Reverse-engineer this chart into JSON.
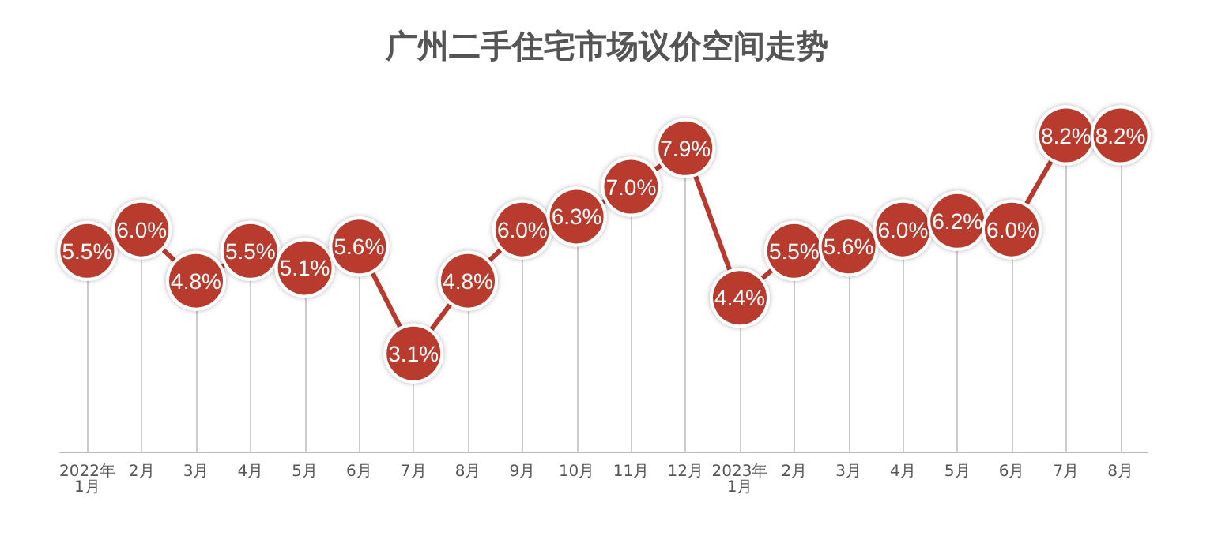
{
  "chart_data": {
    "type": "line",
    "title": "广州二手住宅市场议价空间走势",
    "categories": [
      "2022年\n1月",
      "2月",
      "3月",
      "4月",
      "5月",
      "6月",
      "7月",
      "8月",
      "9月",
      "10月",
      "11月",
      "12月",
      "2023年\n1月",
      "2月",
      "3月",
      "4月",
      "5月",
      "6月",
      "7月",
      "8月"
    ],
    "series": [
      {
        "color": "#b83a2e",
        "values": [
          5.5,
          6.0,
          4.8,
          5.5,
          5.1,
          5.6,
          3.1,
          4.8,
          6.0,
          6.3,
          7.0,
          7.9,
          4.4,
          5.5,
          5.6,
          6.0,
          6.2,
          6.0,
          8.2,
          8.2
        ],
        "value_labels": [
          "5.5%",
          "6.0%",
          "4.8%",
          "5.5%",
          "5.1%",
          "5.6%",
          "3.1%",
          "4.8%",
          "6.0%",
          "6.3%",
          "7.0%",
          "7.9%",
          "4.4%",
          "5.5%",
          "5.6%",
          "6.0%",
          "6.2%",
          "6.0%",
          "8.2%",
          "8.2%"
        ]
      }
    ],
    "marker": "circle",
    "line_style": "solid",
    "grid": "x"
  }
}
